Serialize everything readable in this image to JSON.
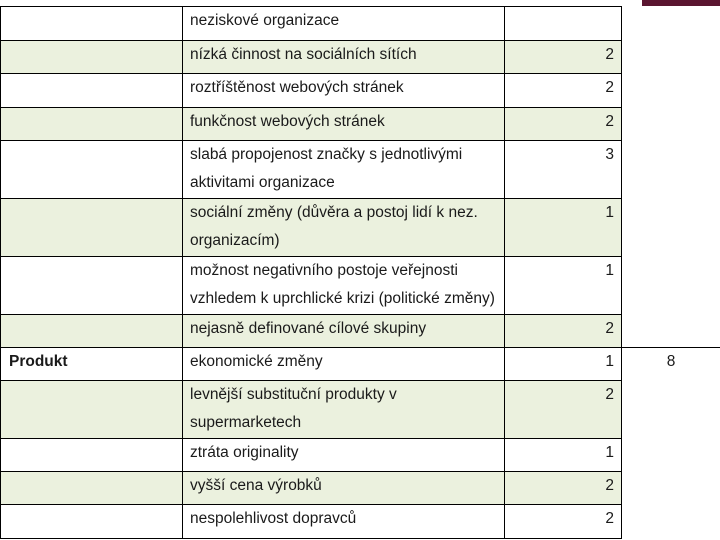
{
  "table": {
    "rows": [
      {
        "category": "",
        "description": "neziskové organizace",
        "score": "",
        "total": "",
        "shaded": false
      },
      {
        "category": "",
        "description": "nízká činnost na sociálních sítích",
        "score": "2",
        "total": "",
        "shaded": true
      },
      {
        "category": "",
        "description": "roztříštěnost webových stránek",
        "score": "2",
        "total": "",
        "shaded": false
      },
      {
        "category": "",
        "description": "funkčnost webových stránek",
        "score": "2",
        "total": "",
        "shaded": true
      },
      {
        "category": "",
        "description": "slabá propojenost značky s jednotlivými aktivitami organizace",
        "score": "3",
        "total": "",
        "shaded": false
      },
      {
        "category": "",
        "description": "sociální změny (důvěra a postoj lidí k nez. organizacím)",
        "score": "1",
        "total": "",
        "shaded": true
      },
      {
        "category": "",
        "description": "možnost negativního postoje veřejnosti vzhledem k uprchlické krizi (politické změny)",
        "score": "1",
        "total": "",
        "shaded": false
      },
      {
        "category": "",
        "description": "nejasně definované cílové skupiny",
        "score": "2",
        "total": "",
        "shaded": true
      },
      {
        "category": "Produkt",
        "description": "ekonomické změny",
        "score": "1",
        "total": "8",
        "shaded": false
      },
      {
        "category": "",
        "description": "levnější substituční produkty v supermarketech",
        "score": "2",
        "total": "",
        "shaded": true
      },
      {
        "category": "",
        "description": "ztráta originality",
        "score": "1",
        "total": "",
        "shaded": false
      },
      {
        "category": "",
        "description": "vyšší cena výrobků",
        "score": "2",
        "total": "",
        "shaded": true
      },
      {
        "category": "",
        "description": "nespolehlivost dopravců",
        "score": "2",
        "total": "",
        "shaded": false
      }
    ]
  },
  "colors": {
    "row_shade": "#ebf1de",
    "border": "#000000",
    "accent": "#5a1530"
  }
}
